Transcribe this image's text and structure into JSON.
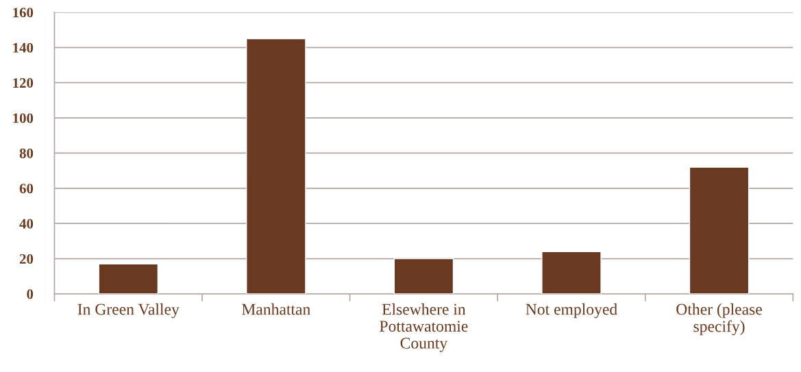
{
  "chart_data": {
    "type": "bar",
    "categories": [
      "In Green Valley",
      "Manhattan",
      "Elsewhere in\nPottawatomie\nCounty",
      "Not employed",
      "Other (please\nspecify)"
    ],
    "values": [
      17,
      145,
      20,
      24,
      72
    ],
    "color": "#693a21",
    "ylim": [
      0,
      160
    ],
    "yticks": [
      0,
      20,
      40,
      60,
      80,
      100,
      120,
      140,
      160
    ],
    "grid": "y"
  }
}
